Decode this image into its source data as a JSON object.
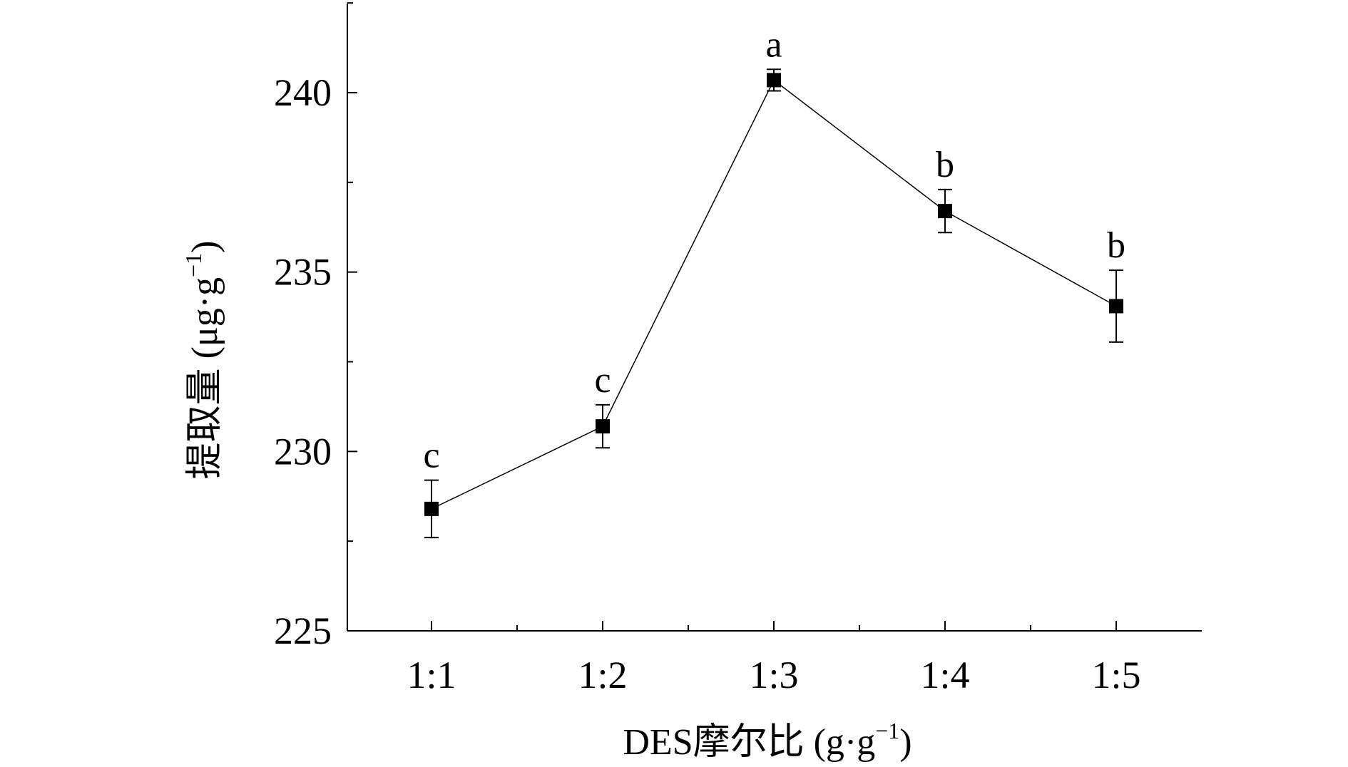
{
  "chart_data": {
    "type": "line",
    "xlabel": "DES摩尔比 (g·g",
    "xlabel_sup": "−1",
    "xlabel_tail": ")",
    "ylabel": "提取量 (μg·g",
    "ylabel_sup": "−1",
    "ylabel_tail": ")",
    "categories": [
      "1:1",
      "1:2",
      "1:3",
      "1:4",
      "1:5"
    ],
    "ylim": [
      225,
      242.5
    ],
    "yticks": [
      "225",
      "230",
      "235",
      "240"
    ],
    "ytick_values": [
      225,
      230,
      235,
      240
    ],
    "minor_ytick_values": [
      227.5,
      232.5,
      237.5,
      242.5
    ],
    "series": [
      {
        "values": [
          228.4,
          230.7,
          240.35,
          236.7,
          234.05
        ],
        "errors": [
          0.8,
          0.6,
          0.3,
          0.6,
          1.0
        ],
        "labels": [
          "c",
          "c",
          "a",
          "b",
          "b"
        ]
      }
    ],
    "grid": false,
    "legend": "none",
    "colors": {
      "line": "#000000",
      "marker": "#000000",
      "axis": "#000000"
    }
  }
}
